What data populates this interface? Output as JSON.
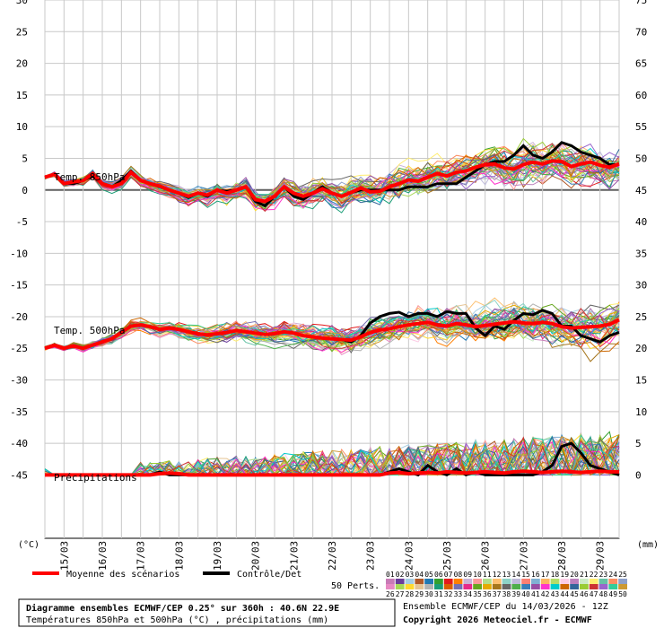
{
  "chart_data": {
    "type": "line",
    "title": "Diagramme ensembles ECMWF/CEP 0.25° sur 360h : 40.6N 22.9E",
    "subtitle": "Températures 850hPa et 500hPa (°C) , précipitations (mm)",
    "run_info": "Ensemble ECMWF/CEP du 14/03/2026 - 12Z",
    "copyright": "Copyright 2026 Meteociel.fr - ECMWF",
    "left_axis": {
      "unit": "(°C)",
      "range": [
        -55,
        30
      ],
      "ticks": [
        30,
        25,
        20,
        15,
        10,
        5,
        0,
        -5,
        -10,
        -15,
        -20,
        -25,
        -30,
        -35,
        -40,
        -45
      ]
    },
    "right_axis": {
      "unit": "(mm)",
      "labels": [
        "75",
        "70",
        "65",
        "60",
        "55",
        "50",
        "45",
        "40",
        "35",
        "30",
        "25",
        "20",
        "15",
        "10",
        "5",
        "0"
      ]
    },
    "x_labels": [
      "15/03",
      "16/03",
      "17/03",
      "18/03",
      "19/03",
      "20/03",
      "21/03",
      "22/03",
      "23/03",
      "24/03",
      "25/03",
      "26/03",
      "27/03",
      "28/03",
      "29/03"
    ],
    "grid": true,
    "panel_labels": [
      "Temp. 850hPa",
      "Temp. 500hPa",
      "Précipitations"
    ],
    "legend": {
      "mean": "Moyenne des scénarios",
      "control": "Contrôle/Det",
      "perts_label": "50 Perts.",
      "members_row1": [
        "01",
        "02",
        "03",
        "04",
        "05",
        "06",
        "07",
        "08",
        "09",
        "10",
        "11",
        "12",
        "13",
        "14",
        "15",
        "16",
        "17",
        "18",
        "19",
        "20",
        "21",
        "22",
        "23",
        "24",
        "25"
      ],
      "members_row2": [
        "26",
        "27",
        "28",
        "29",
        "30",
        "31",
        "32",
        "33",
        "34",
        "35",
        "36",
        "37",
        "38",
        "39",
        "40",
        "41",
        "42",
        "43",
        "44",
        "45",
        "46",
        "47",
        "48",
        "49",
        "50"
      ]
    },
    "colors": {
      "mean": "#ff0000",
      "control": "#000000",
      "members": [
        "#c87ab6",
        "#6a3d9a",
        "#a6cee3",
        "#b15928",
        "#1f78b4",
        "#33a02c",
        "#e31a1c",
        "#ff7f00",
        "#cab2d6",
        "#fb9a99",
        "#b2df8a",
        "#fdbf6f",
        "#8dd3c7",
        "#bebada",
        "#fb8072",
        "#80b1d3",
        "#fdb462",
        "#b3de69",
        "#fccde5",
        "#bc80bd",
        "#ccebc5",
        "#ffed6f",
        "#66c2a5",
        "#fc8d62",
        "#8da0cb",
        "#e78ac3",
        "#a6d854",
        "#ffd92f",
        "#e5c494",
        "#b3b3b3",
        "#1b9e77",
        "#d95f02",
        "#7570b3",
        "#e7298a",
        "#66a61e",
        "#e6ab02",
        "#a6761d",
        "#666666",
        "#4daf4a",
        "#377eb8",
        "#984ea3",
        "#ff33cc",
        "#00cccc",
        "#cc6600",
        "#336699",
        "#99cc33",
        "#cc3333",
        "#9966cc",
        "#33cc99",
        "#cc9933"
      ]
    },
    "series": [
      {
        "name": "Temp. 850hPa",
        "x": [
          14.5,
          14.75,
          15.0,
          15.25,
          15.5,
          15.75,
          16.0,
          16.25,
          16.5,
          16.75,
          17.0,
          17.25,
          17.5,
          17.75,
          18.0,
          18.25,
          18.5,
          18.75,
          19.0,
          19.25,
          19.5,
          19.75,
          20.0,
          20.25,
          20.5,
          20.75,
          21.0,
          21.25,
          21.5,
          21.75,
          22.0,
          22.25,
          22.5,
          22.75,
          23.0,
          23.25,
          23.5,
          23.75,
          24.0,
          24.25,
          24.5,
          24.75,
          25.0,
          25.25,
          25.5,
          25.75,
          26.0,
          26.25,
          26.5,
          26.75,
          27.0,
          27.25,
          27.5,
          27.75,
          28.0,
          28.25,
          28.5,
          28.75,
          29.0,
          29.25,
          29.5
        ],
        "mean": [
          2,
          2.5,
          1,
          1.3,
          1.5,
          2.6,
          1,
          0.5,
          1,
          2.8,
          1.5,
          1,
          0.6,
          0,
          -0.5,
          -1,
          -0.5,
          -0.8,
          0,
          -0.5,
          0,
          0.5,
          -1.5,
          -1.8,
          -1,
          0.5,
          -0.5,
          -1,
          -0.5,
          0.2,
          -0.5,
          -1,
          -0.4,
          0.3,
          -0.3,
          -0.2,
          0.5,
          1,
          1.6,
          1.4,
          2,
          2.6,
          2.2,
          2.8,
          3,
          3.6,
          4,
          4.1,
          3.5,
          3.3,
          4,
          4.4,
          4.1,
          4.6,
          4.5,
          3.7,
          4.1,
          4.4,
          3.9,
          3.6,
          4.1
        ],
        "control": [
          2,
          2.5,
          1,
          1,
          1.5,
          2.2,
          1,
          0.5,
          1.5,
          3,
          1.5,
          1,
          0.5,
          0,
          -0.5,
          -1.2,
          -0.5,
          -1,
          0,
          -0.2,
          0,
          0.5,
          -1.8,
          -2.5,
          -1,
          0.5,
          -1,
          -1.5,
          -0.5,
          0.5,
          -0.5,
          -1,
          -0.4,
          0,
          0,
          0,
          0,
          0,
          0.5,
          0.5,
          0.5,
          1,
          1,
          1,
          2,
          3,
          4,
          4.5,
          4.5,
          5.5,
          7,
          5.5,
          5,
          6,
          7.5,
          7,
          6,
          5.5,
          5,
          4,
          4
        ]
      },
      {
        "name": "Temp. 500hPa",
        "x": [
          14.5,
          14.75,
          15.0,
          15.25,
          15.5,
          15.75,
          16.0,
          16.25,
          16.5,
          16.75,
          17.0,
          17.25,
          17.5,
          17.75,
          18.0,
          18.25,
          18.5,
          18.75,
          19.0,
          19.25,
          19.5,
          19.75,
          20.0,
          20.25,
          20.5,
          20.75,
          21.0,
          21.25,
          21.5,
          21.75,
          22.0,
          22.25,
          22.5,
          22.75,
          23.0,
          23.25,
          23.5,
          23.75,
          24.0,
          24.25,
          24.5,
          24.75,
          25.0,
          25.25,
          25.5,
          25.75,
          26.0,
          26.25,
          26.5,
          26.75,
          27.0,
          27.25,
          27.5,
          27.75,
          28.0,
          28.25,
          28.5,
          28.75,
          29.0,
          29.25,
          29.5
        ],
        "mean": [
          -25,
          -24.5,
          -25,
          -24.6,
          -25,
          -24.5,
          -24,
          -23.5,
          -22.5,
          -21.5,
          -21.3,
          -21.6,
          -22,
          -21.8,
          -22,
          -22.4,
          -22.7,
          -22.9,
          -22.7,
          -22.5,
          -22.2,
          -22.4,
          -22.6,
          -22.8,
          -22.7,
          -22.4,
          -22.6,
          -23,
          -23.2,
          -23.4,
          -23.5,
          -23.6,
          -23.7,
          -23.2,
          -22.5,
          -22.1,
          -21.9,
          -21.6,
          -21.3,
          -21.1,
          -20.9,
          -21.3,
          -21.5,
          -21.1,
          -21.3,
          -21.6,
          -21.4,
          -21.2,
          -21,
          -20.8,
          -21,
          -21.1,
          -20.9,
          -21.1,
          -21.6,
          -21.8,
          -21.7,
          -21.6,
          -21.5,
          -21.2,
          -20.5
        ],
        "control": [
          -25,
          -24.5,
          -25,
          -24.6,
          -25,
          -24.5,
          -24,
          -23.5,
          -22.5,
          -21.5,
          -21.3,
          -21.6,
          -22,
          -21.8,
          -22,
          -22.4,
          -22.7,
          -22.9,
          -22.7,
          -22.5,
          -22.2,
          -22.4,
          -22.6,
          -22.8,
          -22.7,
          -22.4,
          -22.6,
          -23,
          -23.2,
          -23.4,
          -23.5,
          -23.6,
          -24,
          -23,
          -21,
          -20,
          -19.5,
          -19.3,
          -20,
          -19.5,
          -19.5,
          -20,
          -19.2,
          -19.5,
          -19.5,
          -21.8,
          -23,
          -21.5,
          -22,
          -20.6,
          -19.5,
          -19.7,
          -19,
          -19.5,
          -21.5,
          -21.5,
          -23,
          -23.5,
          -24,
          -23,
          -22.5
        ]
      },
      {
        "name": "Précipitations",
        "x": [
          14.5,
          14.75,
          15.0,
          15.25,
          15.5,
          15.75,
          16.0,
          16.25,
          16.5,
          16.75,
          17.0,
          17.25,
          17.5,
          17.75,
          18.0,
          18.25,
          18.5,
          18.75,
          19.0,
          19.25,
          19.5,
          19.75,
          20.0,
          20.25,
          20.5,
          20.75,
          21.0,
          21.25,
          21.5,
          21.75,
          22.0,
          22.25,
          22.5,
          22.75,
          23.0,
          23.25,
          23.5,
          23.75,
          24.0,
          24.25,
          24.5,
          24.75,
          25.0,
          25.25,
          25.5,
          25.75,
          26.0,
          26.25,
          26.5,
          26.75,
          27.0,
          27.25,
          27.5,
          27.75,
          28.0,
          28.25,
          28.5,
          28.75,
          29.0,
          29.25,
          29.5
        ],
        "mean": [
          0,
          0,
          0,
          0,
          0,
          0,
          0,
          0,
          0,
          0,
          0,
          0,
          0.2,
          0.3,
          0.2,
          0,
          0,
          0,
          0,
          0,
          0,
          0,
          0,
          0,
          0,
          0,
          0,
          0,
          0,
          0,
          0,
          0,
          0,
          0,
          0,
          0,
          0.3,
          0.4,
          0.2,
          0.3,
          0.4,
          0.3,
          0.5,
          0.4,
          0.3,
          0.4,
          0.5,
          0.4,
          0.3,
          0.5,
          0.6,
          0.5,
          0.4,
          0.5,
          0.6,
          0.5,
          0.4,
          0.5,
          0.6,
          0.5,
          0.5
        ],
        "control": [
          0,
          0,
          0,
          0,
          0,
          0,
          0,
          0,
          0,
          0,
          0,
          0,
          0.5,
          0,
          0,
          0,
          0,
          0,
          0,
          0,
          0,
          0,
          0,
          0,
          0,
          0,
          0,
          0,
          0,
          0,
          0,
          0,
          0,
          0,
          0,
          0,
          0.5,
          1,
          0.5,
          0,
          1.5,
          0.5,
          0,
          1,
          0,
          0.5,
          0,
          0,
          0,
          0,
          0,
          0,
          0.5,
          1.5,
          4.5,
          5,
          3.5,
          1.5,
          1,
          0.5,
          0
        ]
      }
    ]
  }
}
